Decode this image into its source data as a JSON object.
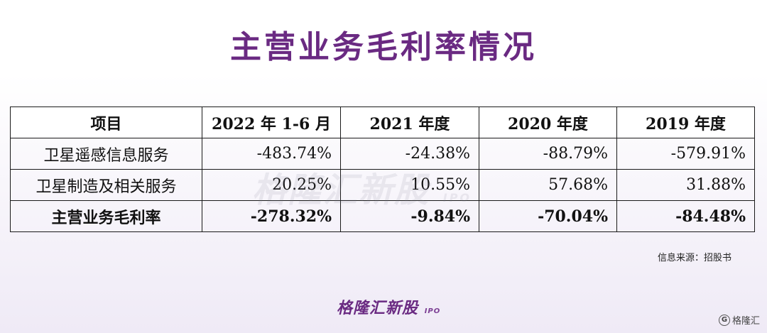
{
  "title": "主营业务毛利率情况",
  "table": {
    "headers": [
      "项目",
      "2022 年 1-6 月",
      "2021 年度",
      "2020 年度",
      "2019 年度"
    ],
    "rows": [
      {
        "label": "卫星遥感信息服务",
        "values": [
          "-483.74%",
          "-24.38%",
          "-88.79%",
          "-579.91%"
        ]
      },
      {
        "label": "卫星制造及相关服务",
        "values": [
          "20.25%",
          "10.55%",
          "57.68%",
          "31.88%"
        ]
      }
    ],
    "total": {
      "label": "主营业务毛利率",
      "values": [
        "-278.32%",
        "-9.84%",
        "-70.04%",
        "-84.48%"
      ]
    }
  },
  "watermark": {
    "text": "格隆汇新股",
    "sub": "IPO"
  },
  "source": "信息来源：招股书",
  "logo": {
    "text": "格隆汇新股",
    "sub": "IPO"
  },
  "corner": {
    "icon": "g-logo-icon",
    "text": "格隆汇"
  }
}
